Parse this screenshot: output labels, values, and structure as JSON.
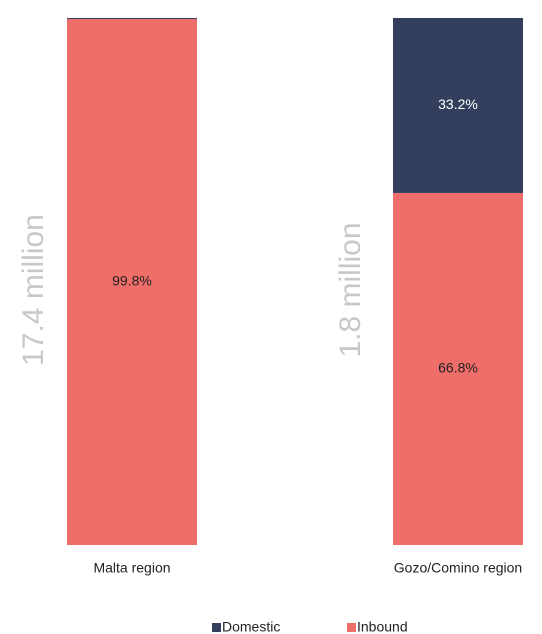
{
  "chart_data": {
    "type": "stacked_bar",
    "categories": [
      "Malta region",
      "Gozo/Comino region"
    ],
    "annotations": [
      "17.4 million",
      "1.8 million"
    ],
    "series": [
      {
        "name": "Domestic",
        "color": "#343f5e",
        "label_color": "#ffffff",
        "values": [
          0.2,
          33.2
        ],
        "value_labels": [
          null,
          "33.2%"
        ]
      },
      {
        "name": "Inbound",
        "color": "#f06e6a",
        "label_color": "#222222",
        "values": [
          99.8,
          66.8
        ],
        "value_labels": [
          "99.8%",
          "66.8%"
        ]
      }
    ],
    "ylim": [
      0,
      100
    ],
    "legend": "bottom"
  }
}
